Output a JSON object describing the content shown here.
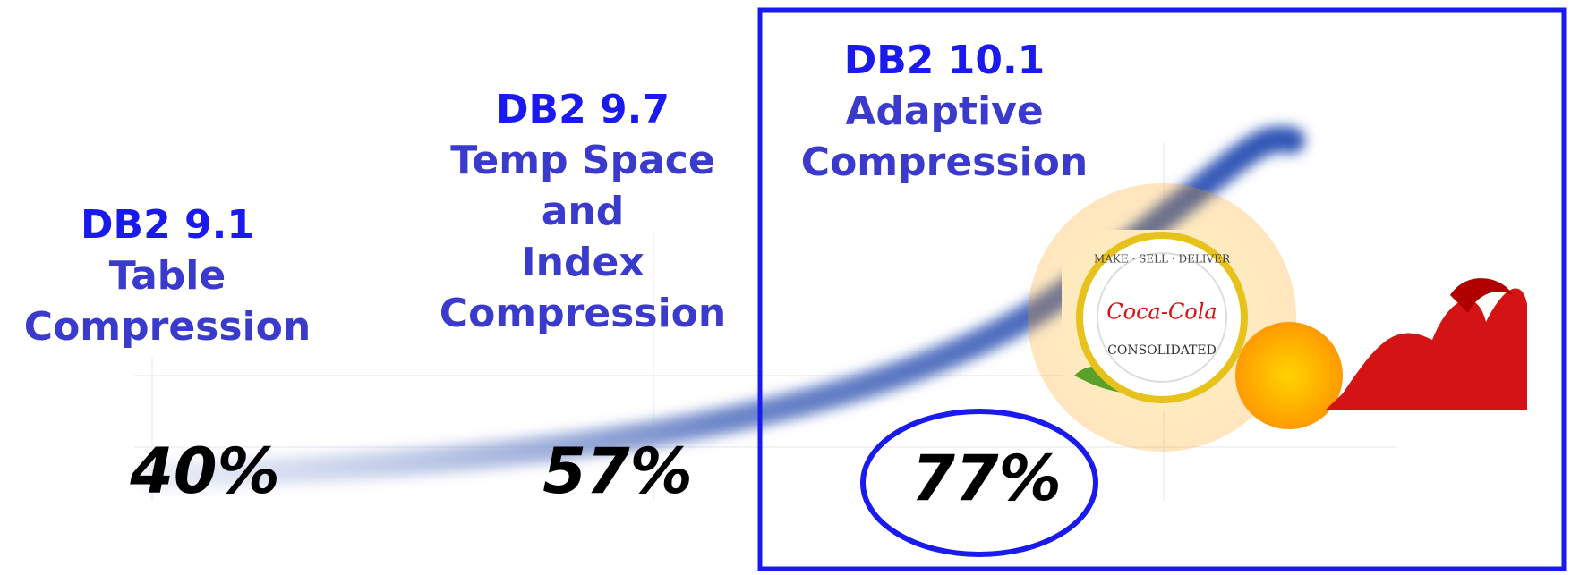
{
  "stages": [
    {
      "version": "DB2 9.1",
      "title": [
        "Table",
        "Compression"
      ],
      "value": "40%"
    },
    {
      "version": "DB2 9.7",
      "title": [
        "Temp Space",
        "and",
        "Index",
        "Compression"
      ],
      "value": "57%"
    },
    {
      "version": "DB2 10.1",
      "title": [
        "Adaptive",
        "Compression"
      ],
      "value": "77%"
    }
  ],
  "logo": {
    "motto": "MAKE · SELL · DELIVER",
    "brand": "Coca-Cola",
    "name": "CONSOLIDATED"
  }
}
